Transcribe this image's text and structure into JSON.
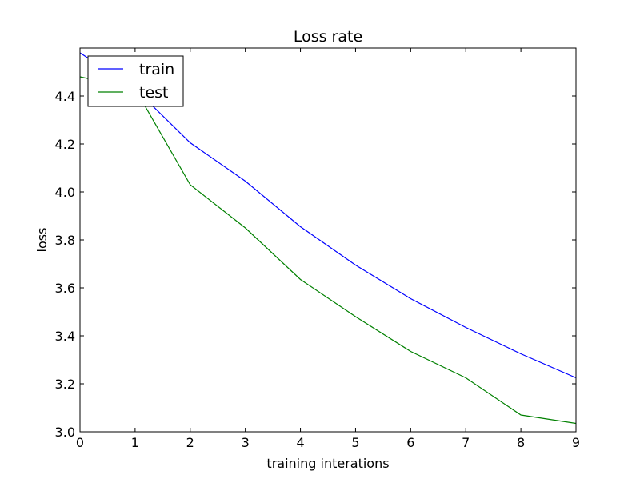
{
  "chart_data": {
    "type": "line",
    "title": "Loss rate",
    "xlabel": "training interations",
    "ylabel": "loss",
    "x": [
      0,
      1,
      2,
      3,
      4,
      5,
      6,
      7,
      8,
      9
    ],
    "xlim": [
      0,
      9
    ],
    "ylim": [
      3.0,
      4.6
    ],
    "xticks": [
      0,
      1,
      2,
      3,
      4,
      5,
      6,
      7,
      8,
      9
    ],
    "yticks": [
      3.0,
      3.2,
      3.4,
      3.6,
      3.8,
      4.0,
      4.2,
      4.4
    ],
    "ytick_labels": [
      "3.0",
      "3.2",
      "3.4",
      "3.6",
      "3.8",
      "4.0",
      "4.2",
      "4.4"
    ],
    "grid": false,
    "legend_position": "top-left",
    "series": [
      {
        "name": "train",
        "color": "#0000ff",
        "values": [
          4.58,
          4.43,
          4.205,
          4.045,
          3.855,
          3.695,
          3.555,
          3.435,
          3.325,
          3.225
        ]
      },
      {
        "name": "test",
        "color": "#008000",
        "values": [
          4.48,
          4.43,
          4.03,
          3.85,
          3.635,
          3.48,
          3.335,
          3.225,
          3.07,
          3.035
        ]
      }
    ]
  }
}
